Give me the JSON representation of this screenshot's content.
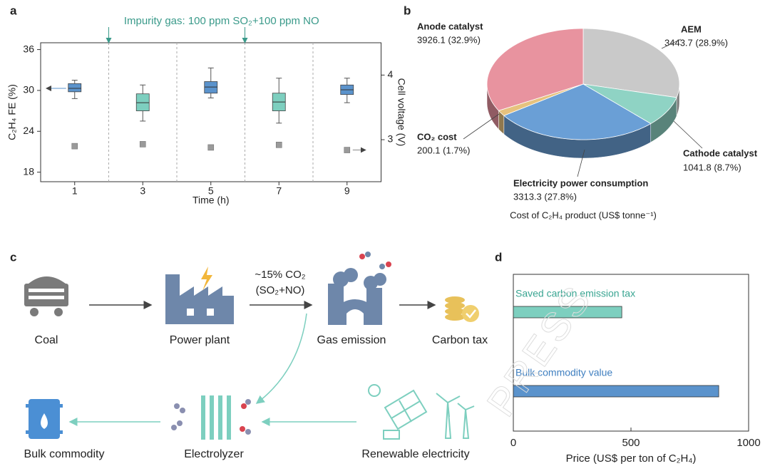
{
  "panel_labels": [
    "a",
    "b",
    "c",
    "d"
  ],
  "chart_data": [
    {
      "type": "box",
      "annotation": "Impurity gas: 100 ppm SO₂+100 ppm NO",
      "xlabel": "Time (h)",
      "ylabel": "C₂H₄ FE (%)",
      "y2label": "Cell voltage (V)",
      "categories": [
        "1",
        "3",
        "5",
        "7",
        "9"
      ],
      "box": {
        "min": [
          28.8,
          25.5,
          28.9,
          25.2,
          28.2
        ],
        "q1": [
          29.8,
          27.0,
          29.6,
          27.0,
          29.4
        ],
        "median": [
          30.3,
          28.2,
          30.5,
          28.3,
          30.1
        ],
        "q3": [
          31.0,
          29.5,
          31.3,
          29.6,
          30.8
        ],
        "max": [
          31.5,
          30.8,
          33.3,
          31.8,
          31.8
        ],
        "colors": [
          "#5b93cc",
          "#7dcfbf",
          "#5b93cc",
          "#7dcfbf",
          "#5b93cc"
        ]
      },
      "voltage": {
        "axis": "y2",
        "color": "#9a9a9a",
        "values": [
          2.9,
          2.93,
          2.88,
          2.92,
          2.84
        ]
      },
      "ylim": [
        16.6,
        37
      ],
      "yticks": [
        18,
        24,
        30,
        36
      ],
      "y2lim": [
        2.35,
        4.5
      ],
      "y2ticks": [
        3,
        4
      ]
    },
    {
      "type": "pie3d",
      "caption": "Cost of C₂H₄ product (US$ tonne⁻¹)",
      "categories": [
        "AEM",
        "Cathode catalyst",
        "Electricity power consumption",
        "CO₂ cost",
        "Anode catalyst"
      ],
      "values": [
        3443.7,
        1041.8,
        3313.3,
        200.1,
        3926.1
      ],
      "value_labels": [
        "3443.7 (28.9%)",
        "1041.8 (8.7%)",
        "3313.3 (27.8%)",
        "200.1 (1.7%)",
        "3926.1 (32.9%)"
      ],
      "colors": [
        "#c9c9c9",
        "#8fd3c4",
        "#6a9fd6",
        "#e6c27e",
        "#e8939f"
      ]
    },
    {
      "type": "hbar",
      "xlabel": "Price (US$ per ton of C₂H₄)",
      "categories": [
        "Saved carbon emission tax",
        "Bulk commodity value"
      ],
      "values": [
        461,
        873
      ],
      "colors": [
        "#7dcfbf",
        "#5b93cc"
      ],
      "label_colors": [
        "#3aa592",
        "#3f7fc0"
      ],
      "xlim": [
        0,
        1000
      ],
      "xticks": [
        0,
        500,
        1000
      ]
    }
  ],
  "diagram": {
    "nodes": [
      "Coal",
      "Power plant",
      "Gas emission",
      "Carbon tax",
      "Bulk commodity",
      "Electrolyzer",
      "Renewable electricity"
    ],
    "flow_label": [
      "~15% CO₂",
      "(SO₂+NO)"
    ]
  },
  "watermark": "PRESS"
}
